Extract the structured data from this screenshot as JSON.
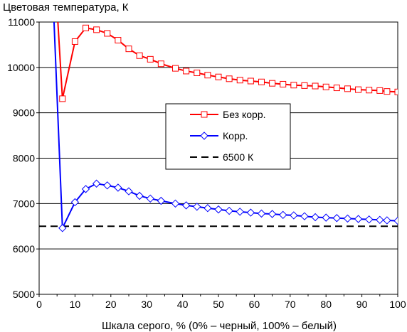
{
  "chart_data": {
    "type": "line",
    "title": "Цветовая температура, К",
    "xlabel": "Шкала серого, % (0% – черный, 100% – белый)",
    "ylabel": "",
    "xlim": [
      0,
      100
    ],
    "ylim": [
      5000,
      11000
    ],
    "x_ticks": [
      "0",
      "10",
      "20",
      "30",
      "40",
      "50",
      "60",
      "70",
      "80",
      "90",
      "100"
    ],
    "y_ticks": [
      "5000",
      "6000",
      "7000",
      "8000",
      "9000",
      "10000",
      "11000"
    ],
    "grid": "horizontal",
    "legend_position": "center-right",
    "series": [
      {
        "name": "Без корр.",
        "color": "#ff0000",
        "marker": "square",
        "x": [
          5,
          6.5,
          10,
          13,
          16,
          19,
          22,
          25,
          28,
          31,
          34,
          38,
          41,
          44,
          47,
          50,
          53,
          56,
          59,
          62,
          65,
          68,
          71,
          74,
          77,
          80,
          83,
          86,
          89,
          92,
          95,
          97,
          100
        ],
        "y": [
          11300,
          9310,
          10570,
          10870,
          10830,
          10750,
          10600,
          10410,
          10260,
          10180,
          10080,
          9980,
          9920,
          9880,
          9830,
          9790,
          9750,
          9720,
          9700,
          9680,
          9650,
          9630,
          9610,
          9600,
          9590,
          9570,
          9550,
          9530,
          9510,
          9500,
          9490,
          9470,
          9460
        ]
      },
      {
        "name": "Корр.",
        "color": "#0000ff",
        "marker": "diamond",
        "x": [
          4,
          6.5,
          10,
          13,
          16,
          19,
          22,
          25,
          28,
          31,
          34,
          38,
          41,
          44,
          47,
          50,
          53,
          56,
          59,
          62,
          65,
          68,
          71,
          74,
          77,
          80,
          83,
          86,
          89,
          92,
          95,
          97,
          100
        ],
        "y": [
          11300,
          6460,
          7030,
          7320,
          7440,
          7400,
          7350,
          7270,
          7170,
          7110,
          7060,
          7000,
          6960,
          6930,
          6900,
          6870,
          6840,
          6820,
          6800,
          6780,
          6770,
          6750,
          6740,
          6720,
          6700,
          6690,
          6680,
          6670,
          6660,
          6650,
          6640,
          6630,
          6620
        ]
      },
      {
        "name": "6500 К",
        "color": "#000000",
        "style": "dashed",
        "x": [
          0,
          100
        ],
        "y": [
          6500,
          6500
        ]
      }
    ]
  }
}
